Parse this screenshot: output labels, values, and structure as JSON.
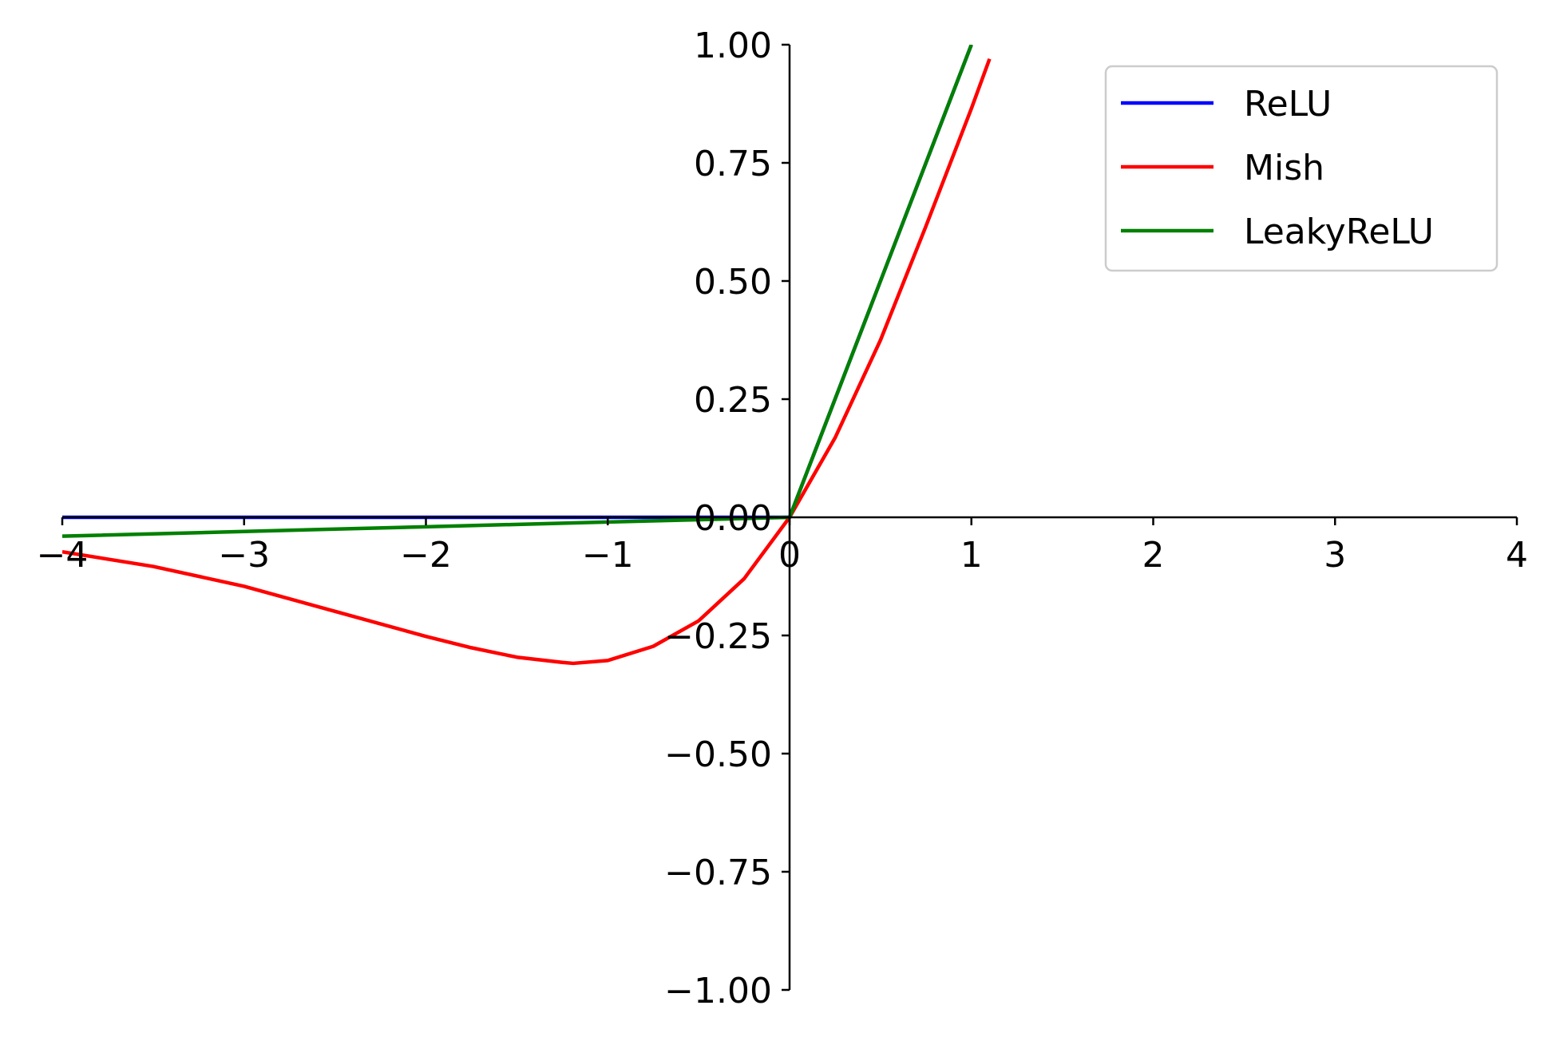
{
  "chart_data": {
    "type": "line",
    "title": "",
    "xlabel": "",
    "ylabel": "",
    "xlim": [
      -4,
      4
    ],
    "ylim": [
      -1,
      1
    ],
    "grid": false,
    "spines": "centered",
    "legend_position": "top-right",
    "x_ticks": [
      {
        "value": -4,
        "label": "−4"
      },
      {
        "value": -3,
        "label": "−3"
      },
      {
        "value": -2,
        "label": "−2"
      },
      {
        "value": -1,
        "label": "−1"
      },
      {
        "value": 0,
        "label": "0"
      },
      {
        "value": 1,
        "label": "1"
      },
      {
        "value": 2,
        "label": "2"
      },
      {
        "value": 3,
        "label": "3"
      },
      {
        "value": 4,
        "label": "4"
      }
    ],
    "y_ticks": [
      {
        "value": 1.0,
        "label": "1.00"
      },
      {
        "value": 0.75,
        "label": "0.75"
      },
      {
        "value": 0.5,
        "label": "0.50"
      },
      {
        "value": 0.25,
        "label": "0.25"
      },
      {
        "value": 0.0,
        "label": "0.00"
      },
      {
        "value": -0.25,
        "label": "−0.25"
      },
      {
        "value": -0.5,
        "label": "−0.50"
      },
      {
        "value": -0.75,
        "label": "−0.75"
      },
      {
        "value": -1.0,
        "label": "−1.00"
      }
    ],
    "series": [
      {
        "name": "ReLU",
        "color": "#0000ff",
        "x": [
          -4,
          -3,
          -2,
          -1,
          0,
          0.5,
          1.0
        ],
        "y": [
          0,
          0,
          0,
          0,
          0,
          0.5,
          1.0
        ]
      },
      {
        "name": "Mish",
        "color": "#ff0000",
        "x": [
          -4.0,
          -3.5,
          -3.0,
          -2.5,
          -2.0,
          -1.75,
          -1.5,
          -1.25,
          -1.19,
          -1.0,
          -0.75,
          -0.5,
          -0.25,
          0.0,
          0.25,
          0.5,
          0.75,
          1.0,
          1.1
        ],
        "y": [
          -0.073,
          -0.104,
          -0.146,
          -0.199,
          -0.252,
          -0.276,
          -0.296,
          -0.307,
          -0.309,
          -0.303,
          -0.273,
          -0.219,
          -0.13,
          0.0,
          0.168,
          0.375,
          0.616,
          0.865,
          0.97
        ]
      },
      {
        "name": "LeakyReLU",
        "color": "#008000",
        "x": [
          -4,
          -3,
          -2,
          -1,
          0,
          0.5,
          1.0
        ],
        "y": [
          -0.04,
          -0.03,
          -0.02,
          -0.01,
          0,
          0.5,
          1.0
        ]
      }
    ]
  }
}
